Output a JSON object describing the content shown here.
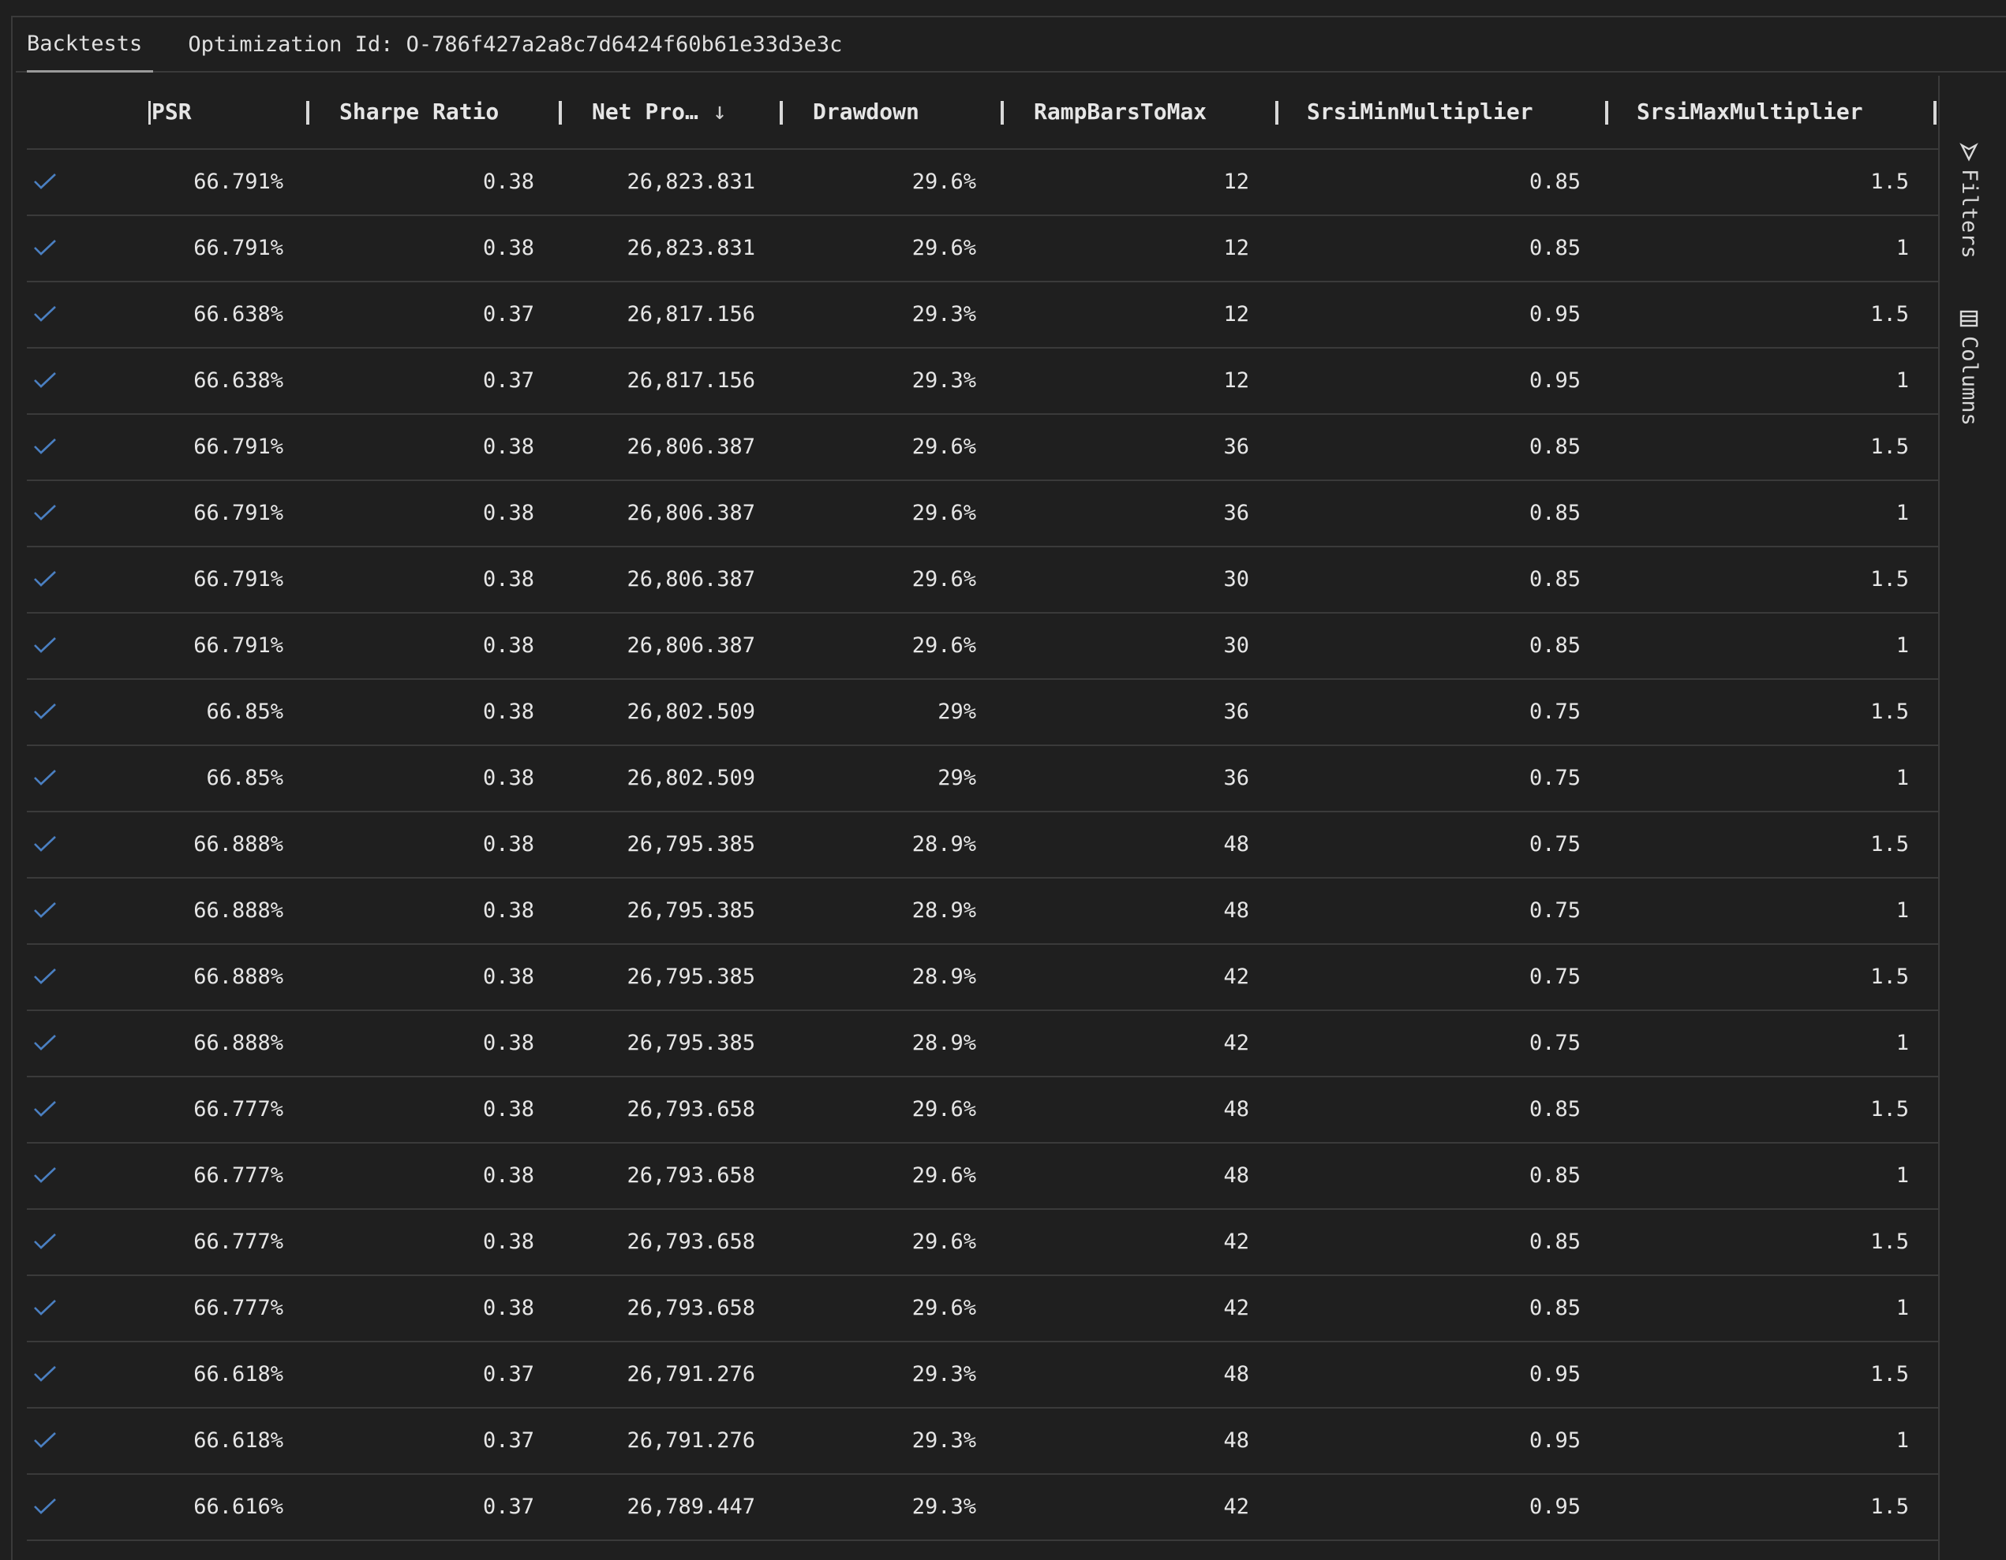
{
  "tabs": {
    "backtests_label": "Backtests",
    "optimization_label": "Optimization Id: O-786f427a2a8c7d6424f60b61e33d3e3c"
  },
  "columns": {
    "psr": "PSR",
    "sharpe": "Sharpe Ratio",
    "net_profit": "Net Pro…",
    "drawdown": "Drawdown",
    "ramp": "RampBarsToMax",
    "srsi_min": "SrsiMinMultiplier",
    "srsi_max": "SrsiMaxMultiplier"
  },
  "side": {
    "filters_label": "Filters",
    "columns_label": "Columns"
  },
  "colors": {
    "background": "#1f1f1f",
    "border": "#3a3a3a",
    "check": "#4a7fc1",
    "text": "#e6e6e6"
  },
  "rows": [
    {
      "psr": "66.791%",
      "sharpe": "0.38",
      "net_profit": "26,823.831",
      "drawdown": "29.6%",
      "ramp": "12",
      "srsi_min": "0.85",
      "srsi_max": "1.5"
    },
    {
      "psr": "66.791%",
      "sharpe": "0.38",
      "net_profit": "26,823.831",
      "drawdown": "29.6%",
      "ramp": "12",
      "srsi_min": "0.85",
      "srsi_max": "1"
    },
    {
      "psr": "66.638%",
      "sharpe": "0.37",
      "net_profit": "26,817.156",
      "drawdown": "29.3%",
      "ramp": "12",
      "srsi_min": "0.95",
      "srsi_max": "1.5"
    },
    {
      "psr": "66.638%",
      "sharpe": "0.37",
      "net_profit": "26,817.156",
      "drawdown": "29.3%",
      "ramp": "12",
      "srsi_min": "0.95",
      "srsi_max": "1"
    },
    {
      "psr": "66.791%",
      "sharpe": "0.38",
      "net_profit": "26,806.387",
      "drawdown": "29.6%",
      "ramp": "36",
      "srsi_min": "0.85",
      "srsi_max": "1.5"
    },
    {
      "psr": "66.791%",
      "sharpe": "0.38",
      "net_profit": "26,806.387",
      "drawdown": "29.6%",
      "ramp": "36",
      "srsi_min": "0.85",
      "srsi_max": "1"
    },
    {
      "psr": "66.791%",
      "sharpe": "0.38",
      "net_profit": "26,806.387",
      "drawdown": "29.6%",
      "ramp": "30",
      "srsi_min": "0.85",
      "srsi_max": "1.5"
    },
    {
      "psr": "66.791%",
      "sharpe": "0.38",
      "net_profit": "26,806.387",
      "drawdown": "29.6%",
      "ramp": "30",
      "srsi_min": "0.85",
      "srsi_max": "1"
    },
    {
      "psr": "66.85%",
      "sharpe": "0.38",
      "net_profit": "26,802.509",
      "drawdown": "29%",
      "ramp": "36",
      "srsi_min": "0.75",
      "srsi_max": "1.5"
    },
    {
      "psr": "66.85%",
      "sharpe": "0.38",
      "net_profit": "26,802.509",
      "drawdown": "29%",
      "ramp": "36",
      "srsi_min": "0.75",
      "srsi_max": "1"
    },
    {
      "psr": "66.888%",
      "sharpe": "0.38",
      "net_profit": "26,795.385",
      "drawdown": "28.9%",
      "ramp": "48",
      "srsi_min": "0.75",
      "srsi_max": "1.5"
    },
    {
      "psr": "66.888%",
      "sharpe": "0.38",
      "net_profit": "26,795.385",
      "drawdown": "28.9%",
      "ramp": "48",
      "srsi_min": "0.75",
      "srsi_max": "1"
    },
    {
      "psr": "66.888%",
      "sharpe": "0.38",
      "net_profit": "26,795.385",
      "drawdown": "28.9%",
      "ramp": "42",
      "srsi_min": "0.75",
      "srsi_max": "1.5"
    },
    {
      "psr": "66.888%",
      "sharpe": "0.38",
      "net_profit": "26,795.385",
      "drawdown": "28.9%",
      "ramp": "42",
      "srsi_min": "0.75",
      "srsi_max": "1"
    },
    {
      "psr": "66.777%",
      "sharpe": "0.38",
      "net_profit": "26,793.658",
      "drawdown": "29.6%",
      "ramp": "48",
      "srsi_min": "0.85",
      "srsi_max": "1.5"
    },
    {
      "psr": "66.777%",
      "sharpe": "0.38",
      "net_profit": "26,793.658",
      "drawdown": "29.6%",
      "ramp": "48",
      "srsi_min": "0.85",
      "srsi_max": "1"
    },
    {
      "psr": "66.777%",
      "sharpe": "0.38",
      "net_profit": "26,793.658",
      "drawdown": "29.6%",
      "ramp": "42",
      "srsi_min": "0.85",
      "srsi_max": "1.5"
    },
    {
      "psr": "66.777%",
      "sharpe": "0.38",
      "net_profit": "26,793.658",
      "drawdown": "29.6%",
      "ramp": "42",
      "srsi_min": "0.85",
      "srsi_max": "1"
    },
    {
      "psr": "66.618%",
      "sharpe": "0.37",
      "net_profit": "26,791.276",
      "drawdown": "29.3%",
      "ramp": "48",
      "srsi_min": "0.95",
      "srsi_max": "1.5"
    },
    {
      "psr": "66.618%",
      "sharpe": "0.37",
      "net_profit": "26,791.276",
      "drawdown": "29.3%",
      "ramp": "48",
      "srsi_min": "0.95",
      "srsi_max": "1"
    },
    {
      "psr": "66.616%",
      "sharpe": "0.37",
      "net_profit": "26,789.447",
      "drawdown": "29.3%",
      "ramp": "42",
      "srsi_min": "0.95",
      "srsi_max": "1.5"
    }
  ]
}
